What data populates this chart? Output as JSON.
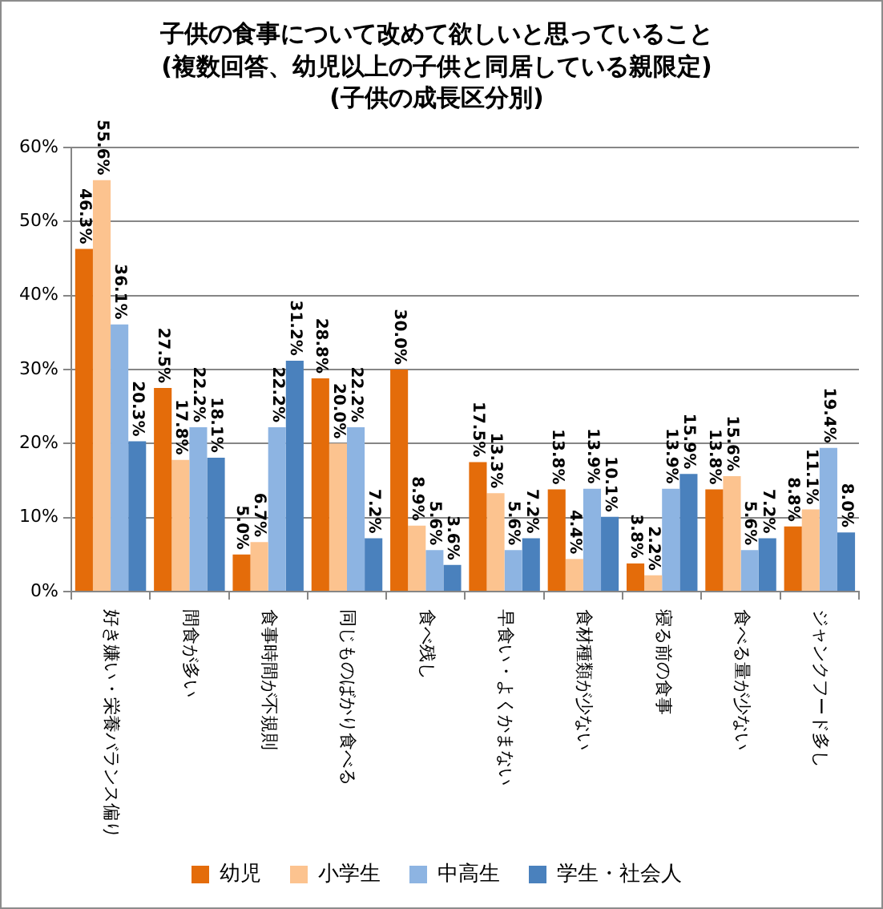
{
  "chart_data": {
    "type": "bar",
    "title": "子供の食事について改めて欲しいと思っていること",
    "subtitle": "(複数回答、幼児以上の子供と同居している親限定)\n(子供の成長区分別)",
    "categories": [
      "好き嫌い・栄養バランス偏り",
      "間食が多い",
      "食事時間が不規則",
      "同じものばかり食べる",
      "食べ残し",
      "早食い・よくかまない",
      "食材種類が少ない",
      "寝る前の食事",
      "食べる量が少ない",
      "ジャンクフード多し"
    ],
    "series": [
      {
        "name": "幼児",
        "color": "#e46c0a",
        "values": [
          46.3,
          27.5,
          5.0,
          28.8,
          30.0,
          17.5,
          13.8,
          3.8,
          13.8,
          8.8
        ],
        "value_labels": [
          "46.3%",
          "27.5%",
          "5.0%",
          "28.8%",
          "30.0%",
          "17.5%",
          "13.8%",
          "3.8%",
          "13.8%",
          "8.8%"
        ]
      },
      {
        "name": "小学生",
        "color": "#fcc38f",
        "values": [
          55.6,
          17.8,
          6.7,
          20.0,
          8.9,
          13.3,
          4.4,
          2.2,
          15.6,
          11.1
        ],
        "value_labels": [
          "55.6%",
          "17.8%",
          "6.7%",
          "20.0%",
          "8.9%",
          "13.3%",
          "4.4%",
          "2.2%",
          "15.6%",
          "11.1%"
        ]
      },
      {
        "name": "中高生",
        "color": "#8db4e2",
        "values": [
          36.1,
          22.2,
          22.2,
          22.2,
          5.6,
          5.6,
          13.9,
          13.9,
          5.6,
          19.4
        ],
        "value_labels": [
          "36.1%",
          "22.2%",
          "22.2%",
          "22.2%",
          "5.6%",
          "5.6%",
          "13.9%",
          "13.9%",
          "5.6%",
          "19.4%"
        ]
      },
      {
        "name": "学生・社会人",
        "color": "#4a81bd",
        "values": [
          20.3,
          18.1,
          31.2,
          7.2,
          3.6,
          7.2,
          10.1,
          15.9,
          7.2,
          8.0
        ],
        "value_labels": [
          "20.3%",
          "18.1%",
          "31.2%",
          "7.2%",
          "3.6%",
          "7.2%",
          "10.1%",
          "15.9%",
          "7.2%",
          "8.0%"
        ]
      }
    ],
    "ylim": [
      0,
      60
    ],
    "yticks": [
      {
        "value": 0,
        "label": "0%"
      },
      {
        "value": 10,
        "label": "10%"
      },
      {
        "value": 20,
        "label": "20%"
      },
      {
        "value": 30,
        "label": "30%"
      },
      {
        "value": 40,
        "label": "40%"
      },
      {
        "value": 50,
        "label": "50%"
      },
      {
        "value": 60,
        "label": "60%"
      }
    ],
    "grid": "y",
    "legend": "bottom"
  }
}
